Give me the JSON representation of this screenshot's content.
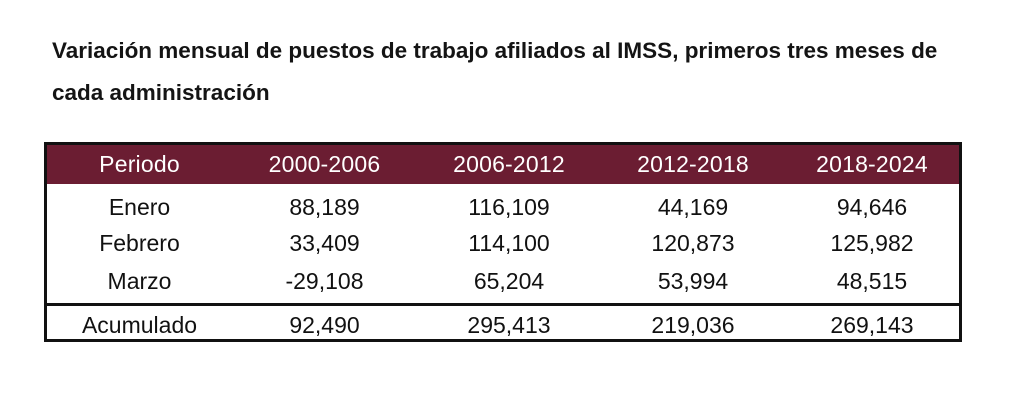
{
  "title": "Variación mensual de puestos de trabajo afiliados al IMSS, primeros tres meses de cada administración",
  "colors": {
    "header_bg": "#6b1d32",
    "header_text": "#ffffff",
    "border": "#111111"
  },
  "table": {
    "headers": [
      "Periodo",
      "2000-2006",
      "2006-2012",
      "2012-2018",
      "2018-2024"
    ],
    "rows": [
      [
        "Enero",
        "88,189",
        "116,109",
        "44,169",
        "94,646"
      ],
      [
        "Febrero",
        "33,409",
        "114,100",
        "120,873",
        "125,982"
      ],
      [
        "Marzo",
        "-29,108",
        "65,204",
        "53,994",
        "48,515"
      ]
    ],
    "total": [
      "Acumulado",
      "92,490",
      "295,413",
      "219,036",
      "269,143"
    ]
  }
}
